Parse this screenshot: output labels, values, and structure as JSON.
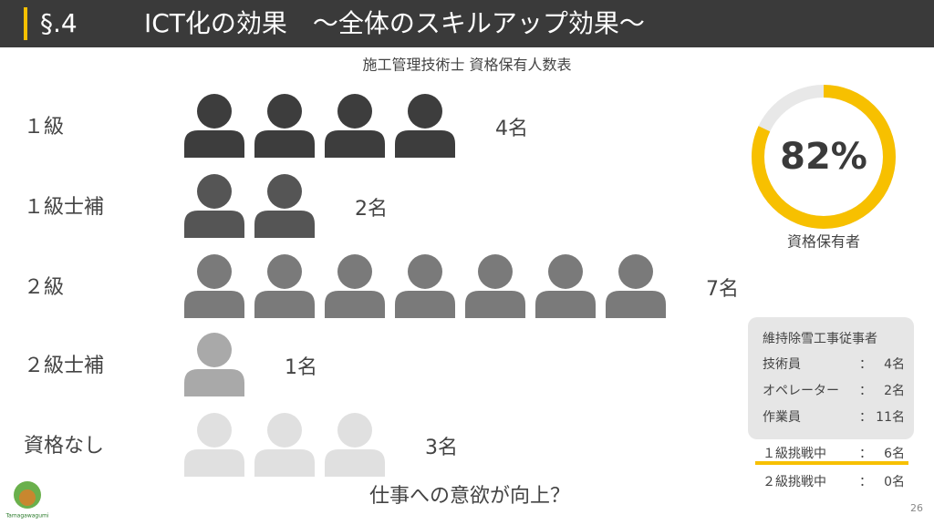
{
  "header": {
    "section": "§.4",
    "title": "ICT化の効果　～全体のスキルアップ効果～"
  },
  "subtitle": "施工管理技術士 資格保有人数表",
  "rows": [
    {
      "label": "１級",
      "count": 4,
      "count_label": "4名",
      "color": "#3d3d3d"
    },
    {
      "label": "１級士補",
      "count": 2,
      "count_label": "2名",
      "color": "#555555"
    },
    {
      "label": "２級",
      "count": 7,
      "count_label": "7名",
      "color": "#7a7a7a"
    },
    {
      "label": "２級士補",
      "count": 1,
      "count_label": "1名",
      "color": "#a9a9a9"
    },
    {
      "label": "資格なし",
      "count": 3,
      "count_label": "3名",
      "color": "#e0e0e0"
    }
  ],
  "donut": {
    "value": 82,
    "label": "82%",
    "caption": "資格保有者",
    "color": "#f7c000",
    "track": "#e8e8e8"
  },
  "staff_box": {
    "title": "維持除雪工事従事者",
    "rows": [
      {
        "role": "技術員",
        "separator": "：",
        "count": "4名"
      },
      {
        "role": "オペレーター",
        "separator": "：",
        "count": "2名"
      },
      {
        "role": "作業員",
        "separator": "：",
        "count": "11名"
      }
    ]
  },
  "challenges": [
    {
      "role": "１級挑戦中",
      "separator": "：",
      "count": "6名"
    },
    {
      "role": "２級挑戦中",
      "separator": "：",
      "count": "0名"
    }
  ],
  "question": "仕事への意欲が向上？",
  "logo": "Tamagawagumi",
  "page_number": "26"
}
